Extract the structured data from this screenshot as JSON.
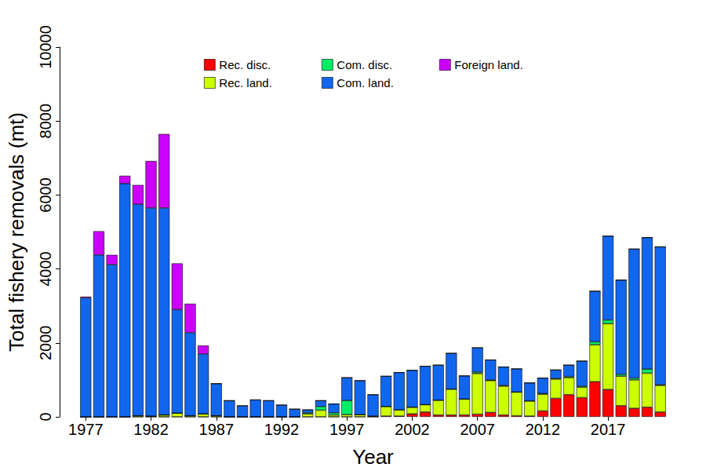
{
  "chart_data": {
    "type": "bar",
    "stacked": true,
    "x_label": "Year",
    "y_label": "Total fishery removals (mt)",
    "categories": [
      "1977",
      null,
      null,
      null,
      null,
      "1982",
      null,
      null,
      null,
      null,
      "1987",
      null,
      null,
      null,
      null,
      "1992",
      null,
      null,
      null,
      null,
      "1997",
      null,
      null,
      null,
      null,
      "2002",
      null,
      null,
      null,
      null,
      "2007",
      null,
      null,
      null,
      null,
      "2012",
      null,
      null,
      null,
      null,
      "2017",
      null,
      null,
      null,
      null
    ],
    "ylim": [
      0,
      10000
    ],
    "yticks": [
      0,
      2000,
      4000,
      6000,
      8000,
      10000
    ],
    "grid": false,
    "legend": "top",
    "series": [
      {
        "name": "Rec. disc.",
        "color": "#ff0000",
        "values": [
          0,
          0,
          0,
          0,
          0,
          0,
          0,
          0,
          0,
          0,
          0,
          0,
          0,
          0,
          0,
          0,
          0,
          0,
          0,
          0,
          0,
          0,
          0,
          20,
          20,
          80,
          130,
          50,
          50,
          50,
          70,
          120,
          50,
          30,
          20,
          160,
          500,
          600,
          520,
          950,
          740,
          300,
          230,
          260,
          130
        ]
      },
      {
        "name": "Rec. land.",
        "color": "#ccff00",
        "values": [
          0,
          0,
          0,
          0,
          30,
          20,
          50,
          100,
          30,
          80,
          30,
          0,
          0,
          0,
          0,
          0,
          0,
          80,
          180,
          50,
          60,
          60,
          20,
          260,
          170,
          180,
          200,
          400,
          700,
          430,
          1100,
          860,
          780,
          640,
          410,
          450,
          520,
          460,
          280,
          1000,
          1780,
          800,
          770,
          920,
          720
        ]
      },
      {
        "name": "Com. disc.",
        "color": "#00ee66",
        "values": [
          0,
          0,
          0,
          0,
          0,
          0,
          0,
          0,
          0,
          0,
          0,
          0,
          0,
          0,
          0,
          0,
          0,
          30,
          100,
          60,
          380,
          0,
          0,
          0,
          0,
          0,
          0,
          0,
          0,
          0,
          40,
          20,
          20,
          0,
          0,
          20,
          20,
          30,
          30,
          80,
          100,
          50,
          50,
          110,
          20
        ]
      },
      {
        "name": "Com. land.",
        "color": "#1166ee",
        "values": [
          3220,
          4380,
          4120,
          6310,
          5720,
          5630,
          5600,
          2800,
          2250,
          1620,
          870,
          440,
          300,
          460,
          440,
          320,
          210,
          80,
          160,
          240,
          620,
          920,
          580,
          820,
          1010,
          1000,
          1040,
          950,
          970,
          630,
          660,
          540,
          500,
          630,
          490,
          420,
          230,
          310,
          680,
          1370,
          2270,
          2550,
          3490,
          3560,
          3730
        ]
      },
      {
        "name": "Foreign land.",
        "color": "#cc00ff",
        "values": [
          30,
          640,
          260,
          210,
          520,
          1270,
          2000,
          1250,
          780,
          230,
          0,
          0,
          0,
          0,
          0,
          0,
          0,
          0,
          0,
          0,
          0,
          0,
          0,
          0,
          0,
          0,
          0,
          0,
          0,
          0,
          0,
          0,
          0,
          0,
          0,
          0,
          0,
          0,
          0,
          0,
          0,
          0,
          0,
          0,
          0
        ]
      }
    ]
  }
}
